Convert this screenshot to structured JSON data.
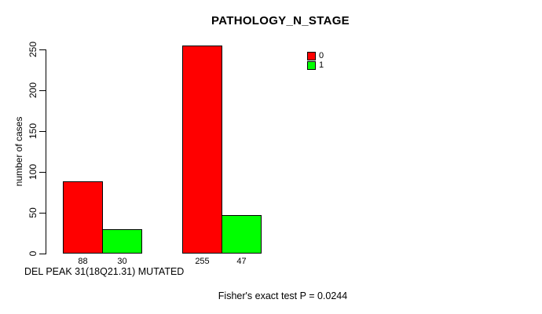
{
  "chart_data": {
    "type": "bar",
    "title": "PATHOLOGY_N_STAGE",
    "xlabel": "DEL PEAK 31(18Q21.31) MUTATED",
    "ylabel": "number of cases",
    "ylim": [
      0,
      250
    ],
    "yticks": [
      0,
      50,
      100,
      150,
      200,
      250
    ],
    "grid": false,
    "legend_position": "top-right",
    "categories": [
      "",
      ""
    ],
    "series": [
      {
        "name": "0",
        "color": "#ff0000",
        "values": [
          88,
          255
        ]
      },
      {
        "name": "1",
        "color": "#00ff00",
        "values": [
          30,
          47
        ]
      }
    ],
    "annotation": "Fisher's exact test P = 0.0244"
  },
  "colors": {
    "background": "#ffffff",
    "axis": "#000000",
    "text": "#000000",
    "series0": "#ff0000",
    "series1": "#00ff00"
  }
}
